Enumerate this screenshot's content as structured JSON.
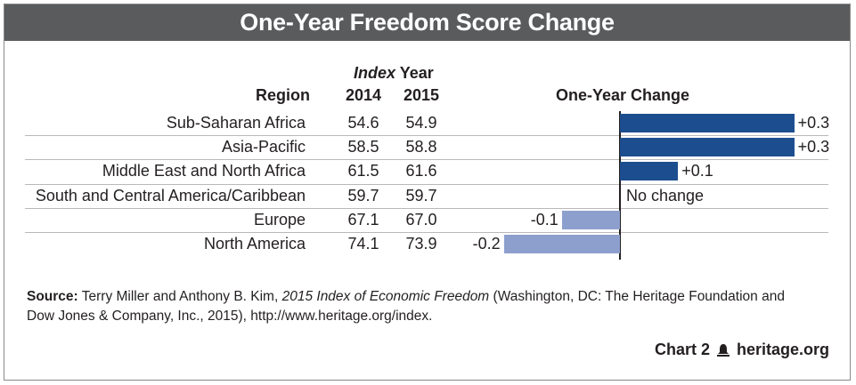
{
  "title": "One-Year Freedom Score Change",
  "headers": {
    "index_year_prefix": "Index",
    "index_year_suffix": " Year",
    "region": "Region",
    "year_2014": "2014",
    "year_2015": "2015",
    "change": "One-Year Change"
  },
  "chart_data": {
    "type": "bar",
    "orientation": "horizontal",
    "categories": [
      "Sub-Saharan Africa",
      "Asia-Pacific",
      "Middle East and North Africa",
      "South and Central America/Caribbean",
      "Europe",
      "North America"
    ],
    "score_2014": [
      "54.6",
      "58.5",
      "61.5",
      "59.7",
      "67.1",
      "74.1"
    ],
    "score_2015": [
      "54.9",
      "58.8",
      "61.6",
      "59.7",
      "67.0",
      "73.9"
    ],
    "series": [
      {
        "values": [
          0.3,
          0.3,
          0.1,
          0,
          -0.1,
          -0.2
        ]
      }
    ],
    "data_labels": [
      "+0.3",
      "+0.3",
      "+0.1",
      "No change",
      "-0.1",
      "-0.2"
    ],
    "xlim": [
      -0.2,
      0.3
    ],
    "colors": {
      "positive": "#1c4e8f",
      "negative": "#8d9fcd"
    }
  },
  "source": {
    "label": "Source:",
    "text_before": " Terry Miller and Anthony B. Kim, ",
    "title_italic": "2015 Index of Economic Freedom",
    "text_after": " (Washington, DC: The Heritage Foundation and Dow Jones & Company, Inc., 2015), http://www.heritage.org/index."
  },
  "footer": {
    "chart_number": "Chart 2",
    "logo_icon": "bell-icon",
    "org": "heritage.org"
  },
  "colors": {
    "title_bar": "#5a5b5d"
  }
}
